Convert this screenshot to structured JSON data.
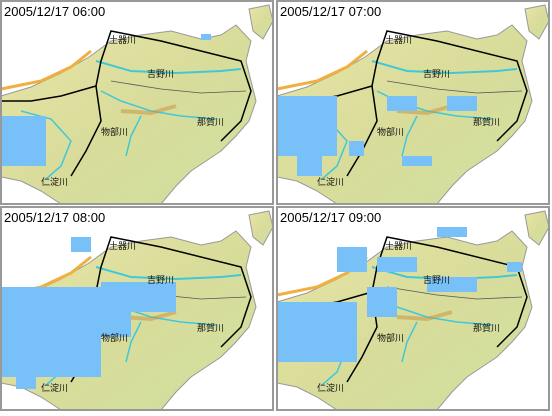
{
  "panels": [
    {
      "timestamp": "2005/12/17 06:00",
      "labels": [
        "土器川",
        "吉野川",
        "那賀川",
        "物部川",
        "仁淀川"
      ]
    },
    {
      "timestamp": "2005/12/17 07:00",
      "labels": [
        "土器川",
        "吉野川",
        "那賀川",
        "物部川",
        "仁淀川"
      ]
    },
    {
      "timestamp": "2005/12/17 08:00",
      "labels": [
        "土器川",
        "吉野川",
        "那賀川",
        "物部川",
        "仁淀川"
      ]
    },
    {
      "timestamp": "2005/12/17 09:00",
      "labels": [
        "土器川",
        "吉野川",
        "那賀川",
        "物部川",
        "仁淀川"
      ]
    }
  ]
}
